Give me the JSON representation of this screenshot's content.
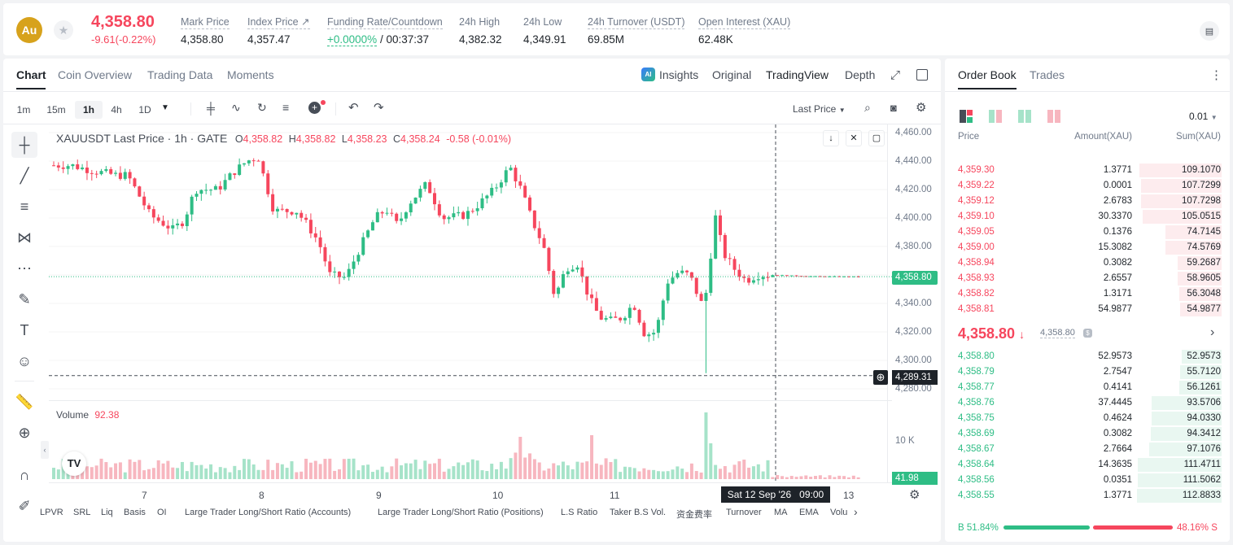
{
  "header": {
    "symbol_badge": "Au",
    "last_price": "4,358.80",
    "change": "-9.61(-0.22%)",
    "stats": [
      {
        "label": "Mark Price",
        "value": "4,358.80"
      },
      {
        "label": "Index Price",
        "value": "4,357.47"
      },
      {
        "label": "Funding Rate/Countdown",
        "value_green": "+0.0000%",
        "value": "/ 00:37:37"
      },
      {
        "label": "24h High",
        "value": "4,382.32"
      },
      {
        "label": "24h Low",
        "value": "4,349.91"
      },
      {
        "label": "24h Turnover (USDT)",
        "value": "69.85M"
      },
      {
        "label": "Open Interest (XAU)",
        "value": "62.48K"
      }
    ]
  },
  "chart_tabs": [
    "Chart",
    "Coin Overview",
    "Trading Data",
    "Moments"
  ],
  "view_tabs": {
    "insights": "Insights",
    "original": "Original",
    "tradingview": "TradingView",
    "depth": "Depth"
  },
  "timeframes": [
    "1m",
    "15m",
    "1h",
    "4h",
    "1D"
  ],
  "price_type": "Last Price",
  "legend": {
    "title": "XAUUSDT Last Price · 1h · GATE",
    "o": "O",
    "o_val": "4,358.82",
    "h": "H",
    "h_val": "4,358.82",
    "l": "L",
    "l_val": "4,358.23",
    "c": "C",
    "c_val": "4,358.24",
    "chg": "-0.58 (-0.01%)"
  },
  "volume_label": "Volume",
  "volume_value": "92.38",
  "price_axis": [
    "4,460.00",
    "4,440.00",
    "4,420.00",
    "4,400.00",
    "4,380.00",
    "4,360.00",
    "4,340.00",
    "4,320.00",
    "4,300.00",
    "4,280.00"
  ],
  "current_price_tag": "4,358.80",
  "crosshair_price_tag": "4,289.31",
  "volume_axis": "10 K",
  "volume_tag": "41.98",
  "x_axis": [
    "7",
    "8",
    "9",
    "10",
    "11",
    "13"
  ],
  "crosshair_time": "Sat 12 Sep '26   09:00",
  "indicators": [
    "LPVR",
    "SRL",
    "Liq",
    "Basis",
    "OI",
    "Large Trader Long/Short Ratio (Accounts)",
    "Large Trader Long/Short Ratio (Positions)",
    "L.S Ratio",
    "Taker B.S Vol.",
    "资金费率",
    "Turnover",
    "MA",
    "EMA",
    "Volu"
  ],
  "orderbook": {
    "tabs": [
      "Order Book",
      "Trades"
    ],
    "precision": "0.01",
    "cols": [
      "Price",
      "Amount(XAU)",
      "Sum(XAU)"
    ],
    "asks": [
      {
        "price": "4,359.30",
        "amount": "1.3771",
        "sum": "109.1070",
        "depth": 0.97
      },
      {
        "price": "4,359.22",
        "amount": "0.0001",
        "sum": "107.7299",
        "depth": 0.95
      },
      {
        "price": "4,359.12",
        "amount": "2.6783",
        "sum": "107.7298",
        "depth": 0.95
      },
      {
        "price": "4,359.10",
        "amount": "30.3370",
        "sum": "105.0515",
        "depth": 0.93
      },
      {
        "price": "4,359.05",
        "amount": "0.1376",
        "sum": "74.7145",
        "depth": 0.66
      },
      {
        "price": "4,359.00",
        "amount": "15.3082",
        "sum": "74.5769",
        "depth": 0.66
      },
      {
        "price": "4,358.94",
        "amount": "0.3082",
        "sum": "59.2687",
        "depth": 0.52
      },
      {
        "price": "4,358.93",
        "amount": "2.6557",
        "sum": "58.9605",
        "depth": 0.52
      },
      {
        "price": "4,358.82",
        "amount": "1.3171",
        "sum": "56.3048",
        "depth": 0.5
      },
      {
        "price": "4,358.81",
        "amount": "54.9877",
        "sum": "54.9877",
        "depth": 0.49
      }
    ],
    "mid_price": "4,358.80",
    "mid_mark": "4,358.80",
    "bids": [
      {
        "price": "4,358.80",
        "amount": "52.9573",
        "sum": "52.9573",
        "depth": 0.47
      },
      {
        "price": "4,358.79",
        "amount": "2.7547",
        "sum": "55.7120",
        "depth": 0.49
      },
      {
        "price": "4,358.77",
        "amount": "0.4141",
        "sum": "56.1261",
        "depth": 0.5
      },
      {
        "price": "4,358.76",
        "amount": "37.4445",
        "sum": "93.5706",
        "depth": 0.83
      },
      {
        "price": "4,358.75",
        "amount": "0.4624",
        "sum": "94.0330",
        "depth": 0.83
      },
      {
        "price": "4,358.69",
        "amount": "0.3082",
        "sum": "94.3412",
        "depth": 0.84
      },
      {
        "price": "4,358.67",
        "amount": "2.7664",
        "sum": "97.1076",
        "depth": 0.86
      },
      {
        "price": "4,358.64",
        "amount": "14.3635",
        "sum": "111.4711",
        "depth": 0.99
      },
      {
        "price": "4,358.56",
        "amount": "0.0351",
        "sum": "111.5062",
        "depth": 0.99
      },
      {
        "price": "4,358.55",
        "amount": "1.3771",
        "sum": "112.8833",
        "depth": 1.0
      }
    ],
    "buy_ratio_label": "B 51.84%",
    "sell_ratio_label": "48.16% S",
    "buy_ratio": 0.5184
  },
  "colors": {
    "up": "#2ebd85",
    "down": "#f6465d",
    "up_bg": "#e9f7f1",
    "down_bg": "#fdecee"
  }
}
